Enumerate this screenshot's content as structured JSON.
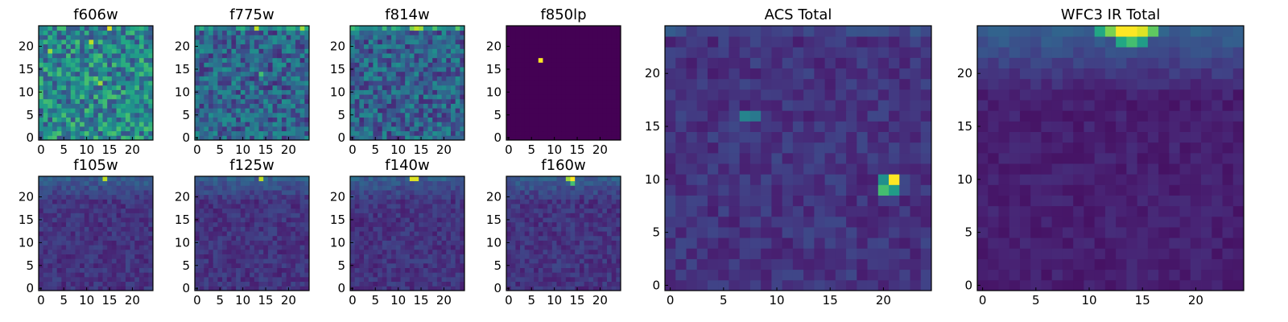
{
  "chart_data": [
    {
      "type": "heatmap",
      "title": "f606w",
      "grid": [
        25,
        25
      ],
      "xticks": [
        "0",
        "5",
        "10",
        "15",
        "20"
      ],
      "yticks": [
        "0",
        "5",
        "10",
        "15",
        "20"
      ],
      "pattern": "noisy-high",
      "hotspots": [
        {
          "x": 13,
          "y": 12,
          "v": 0.85
        },
        {
          "x": 12,
          "y": 13,
          "v": 0.75
        },
        {
          "x": 15,
          "y": 24,
          "v": 0.95
        },
        {
          "x": 2,
          "y": 19,
          "v": 0.85
        },
        {
          "x": 11,
          "y": 21,
          "v": 0.9
        }
      ]
    },
    {
      "type": "heatmap",
      "title": "f775w",
      "grid": [
        25,
        25
      ],
      "xticks": [
        "0",
        "5",
        "10",
        "15",
        "20"
      ],
      "yticks": [
        "0",
        "5",
        "10",
        "15",
        "20"
      ],
      "pattern": "noisy-mid",
      "hotspots": [
        {
          "x": 13,
          "y": 24,
          "v": 0.9
        },
        {
          "x": 14,
          "y": 14,
          "v": 0.7
        },
        {
          "x": 23,
          "y": 24,
          "v": 0.85
        }
      ]
    },
    {
      "type": "heatmap",
      "title": "f814w",
      "grid": [
        25,
        25
      ],
      "xticks": [
        "0",
        "5",
        "10",
        "15",
        "20"
      ],
      "yticks": [
        "0",
        "5",
        "10",
        "15",
        "20"
      ],
      "pattern": "noisy-mid-top",
      "hotspots": [
        {
          "x": 14,
          "y": 24,
          "v": 0.9
        },
        {
          "x": 15,
          "y": 24,
          "v": 0.85
        },
        {
          "x": 13,
          "y": 24,
          "v": 0.8
        }
      ]
    },
    {
      "type": "heatmap",
      "title": "f850lp",
      "grid": [
        25,
        25
      ],
      "xticks": [
        "0",
        "5",
        "10",
        "15",
        "20"
      ],
      "yticks": [
        "0",
        "5",
        "10",
        "15",
        "20"
      ],
      "pattern": "empty",
      "hotspots": [
        {
          "x": 7,
          "y": 17,
          "v": 1.0
        }
      ]
    },
    {
      "type": "heatmap",
      "title": "f105w",
      "grid": [
        25,
        25
      ],
      "xticks": [
        "0",
        "5",
        "10",
        "15",
        "20"
      ],
      "yticks": [
        "0",
        "5",
        "10",
        "15",
        "20"
      ],
      "pattern": "smooth-top",
      "hotspots": [
        {
          "x": 14,
          "y": 24,
          "v": 0.9
        }
      ]
    },
    {
      "type": "heatmap",
      "title": "f125w",
      "grid": [
        25,
        25
      ],
      "xticks": [
        "0",
        "5",
        "10",
        "15",
        "20"
      ],
      "yticks": [
        "0",
        "5",
        "10",
        "15",
        "20"
      ],
      "pattern": "smooth-top",
      "hotspots": [
        {
          "x": 14,
          "y": 24,
          "v": 0.9
        }
      ]
    },
    {
      "type": "heatmap",
      "title": "f140w",
      "grid": [
        25,
        25
      ],
      "xticks": [
        "0",
        "5",
        "10",
        "15",
        "20"
      ],
      "yticks": [
        "0",
        "5",
        "10",
        "15",
        "20"
      ],
      "pattern": "smooth-top",
      "hotspots": [
        {
          "x": 13,
          "y": 24,
          "v": 0.95
        },
        {
          "x": 14,
          "y": 24,
          "v": 0.95
        }
      ]
    },
    {
      "type": "heatmap",
      "title": "f160w",
      "grid": [
        25,
        25
      ],
      "xticks": [
        "0",
        "5",
        "10",
        "15",
        "20"
      ],
      "yticks": [
        "0",
        "5",
        "10",
        "15",
        "20"
      ],
      "pattern": "smooth-top",
      "hotspots": [
        {
          "x": 14,
          "y": 24,
          "v": 1.0
        },
        {
          "x": 13,
          "y": 24,
          "v": 0.85
        },
        {
          "x": 14,
          "y": 23,
          "v": 0.7
        }
      ]
    },
    {
      "type": "heatmap",
      "title": "ACS Total",
      "grid": [
        25,
        25
      ],
      "xticks": [
        "0",
        "5",
        "10",
        "15",
        "20"
      ],
      "yticks": [
        "0",
        "5",
        "10",
        "15",
        "20"
      ],
      "pattern": "acs",
      "hotspots": [
        {
          "x": 21,
          "y": 10,
          "v": 1.0
        },
        {
          "x": 20,
          "y": 9,
          "v": 0.7
        },
        {
          "x": 21,
          "y": 9,
          "v": 0.55
        },
        {
          "x": 20,
          "y": 10,
          "v": 0.5
        },
        {
          "x": 7,
          "y": 16,
          "v": 0.45
        },
        {
          "x": 8,
          "y": 16,
          "v": 0.4
        }
      ]
    },
    {
      "type": "heatmap",
      "title": "WFC3 IR Total",
      "grid": [
        25,
        25
      ],
      "xticks": [
        "0",
        "5",
        "10",
        "15",
        "20"
      ],
      "yticks": [
        "0",
        "5",
        "10",
        "15",
        "20"
      ],
      "pattern": "wfc3",
      "hotspots": [
        {
          "x": 13,
          "y": 24,
          "v": 1.0
        },
        {
          "x": 14,
          "y": 24,
          "v": 1.0
        },
        {
          "x": 15,
          "y": 24,
          "v": 0.95
        },
        {
          "x": 12,
          "y": 24,
          "v": 0.8
        },
        {
          "x": 16,
          "y": 24,
          "v": 0.75
        },
        {
          "x": 14,
          "y": 23,
          "v": 0.7
        },
        {
          "x": 11,
          "y": 24,
          "v": 0.6
        },
        {
          "x": 13,
          "y": 23,
          "v": 0.6
        },
        {
          "x": 15,
          "y": 23,
          "v": 0.55
        }
      ]
    }
  ]
}
